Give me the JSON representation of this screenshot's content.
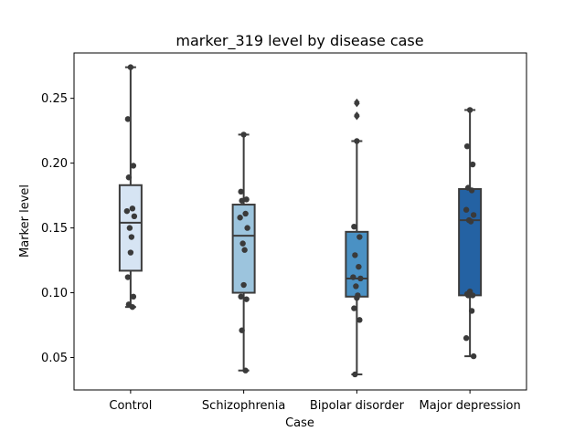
{
  "chart_data": {
    "type": "box",
    "title": "marker_319 level by disease case",
    "xlabel": "Case",
    "ylabel": "Marker level",
    "categories": [
      "Control",
      "Schizophrenia",
      "Bipolar disorder",
      "Major depression"
    ],
    "ylim": [
      0.025,
      0.285
    ],
    "yticks": [
      0.05,
      0.1,
      0.15,
      0.2,
      0.25
    ],
    "ytick_labels": [
      "0.05",
      "0.10",
      "0.15",
      "0.20",
      "0.25"
    ],
    "grid": false,
    "legend": "none",
    "box_colors": [
      "#d6e4f3",
      "#9cc4dd",
      "#4a91c4",
      "#2462a3"
    ],
    "stroke_color": "#3c3c3c",
    "point_color": "#3a3a3a",
    "boxes": [
      {
        "category": "Control",
        "q1": 0.117,
        "median": 0.154,
        "q3": 0.183,
        "whisker_low": 0.089,
        "whisker_high": 0.274,
        "outliers": [],
        "points": [
          0.274,
          0.234,
          0.198,
          0.189,
          0.165,
          0.163,
          0.159,
          0.15,
          0.143,
          0.131,
          0.112,
          0.097,
          0.091,
          0.089
        ]
      },
      {
        "category": "Schizophrenia",
        "q1": 0.1,
        "median": 0.144,
        "q3": 0.168,
        "whisker_low": 0.04,
        "whisker_high": 0.222,
        "outliers": [],
        "points": [
          0.222,
          0.178,
          0.172,
          0.171,
          0.161,
          0.158,
          0.15,
          0.138,
          0.133,
          0.106,
          0.097,
          0.095,
          0.071,
          0.04
        ]
      },
      {
        "category": "Bipolar disorder",
        "q1": 0.097,
        "median": 0.111,
        "q3": 0.147,
        "whisker_low": 0.037,
        "whisker_high": 0.217,
        "outliers": [
          0.247,
          0.246,
          0.237,
          0.236
        ],
        "points": [
          0.217,
          0.151,
          0.143,
          0.129,
          0.12,
          0.112,
          0.111,
          0.105,
          0.098,
          0.096,
          0.088,
          0.079,
          0.037
        ]
      },
      {
        "category": "Major depression",
        "q1": 0.098,
        "median": 0.156,
        "q3": 0.18,
        "whisker_low": 0.051,
        "whisker_high": 0.241,
        "outliers": [],
        "points": [
          0.241,
          0.213,
          0.199,
          0.181,
          0.179,
          0.164,
          0.16,
          0.156,
          0.155,
          0.101,
          0.099,
          0.098,
          0.098,
          0.086,
          0.065,
          0.051
        ]
      }
    ]
  }
}
